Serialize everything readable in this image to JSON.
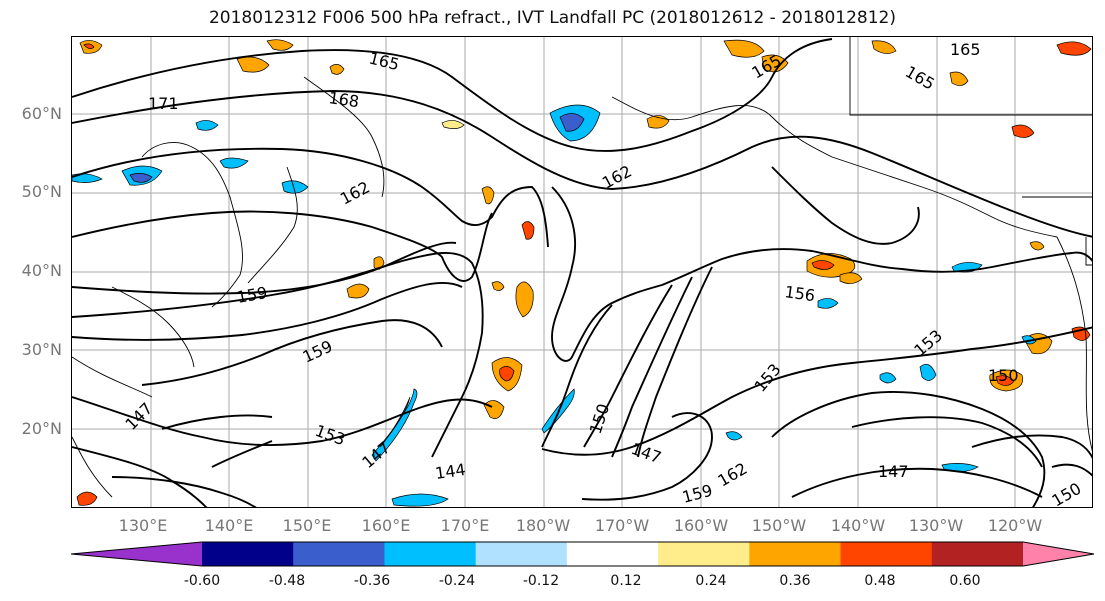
{
  "title": "2018012312 F006 500 hPa refract., IVT Landfall PC (2018012612 - 2018012812)",
  "map": {
    "lat_labels": [
      "60°N",
      "50°N",
      "40°N",
      "30°N",
      "20°N"
    ],
    "lon_labels": [
      "130°E",
      "140°E",
      "150°E",
      "160°E",
      "170°E",
      "180°W",
      "170°W",
      "160°W",
      "150°W",
      "140°W",
      "130°W",
      "120°W"
    ],
    "contour_labels": [
      "165",
      "171",
      "168",
      "162",
      "162",
      "165",
      "165",
      "165",
      "159",
      "159",
      "156",
      "153",
      "153",
      "150",
      "150",
      "147",
      "147",
      "144",
      "147",
      "159",
      "162",
      "147",
      "153",
      "150"
    ]
  },
  "colorbar": {
    "colors": [
      "#9932cc",
      "#00008b",
      "#3a5fcd",
      "#00bfff",
      "#b0e2ff",
      "#ffffff",
      "#ffec8b",
      "#ffa500",
      "#ff4500",
      "#b22222",
      "#ff82ab"
    ],
    "tick_labels": [
      "-0.60",
      "-0.48",
      "-0.36",
      "-0.24",
      "-0.12",
      "0.12",
      "0.24",
      "0.36",
      "0.48",
      "0.60"
    ]
  }
}
